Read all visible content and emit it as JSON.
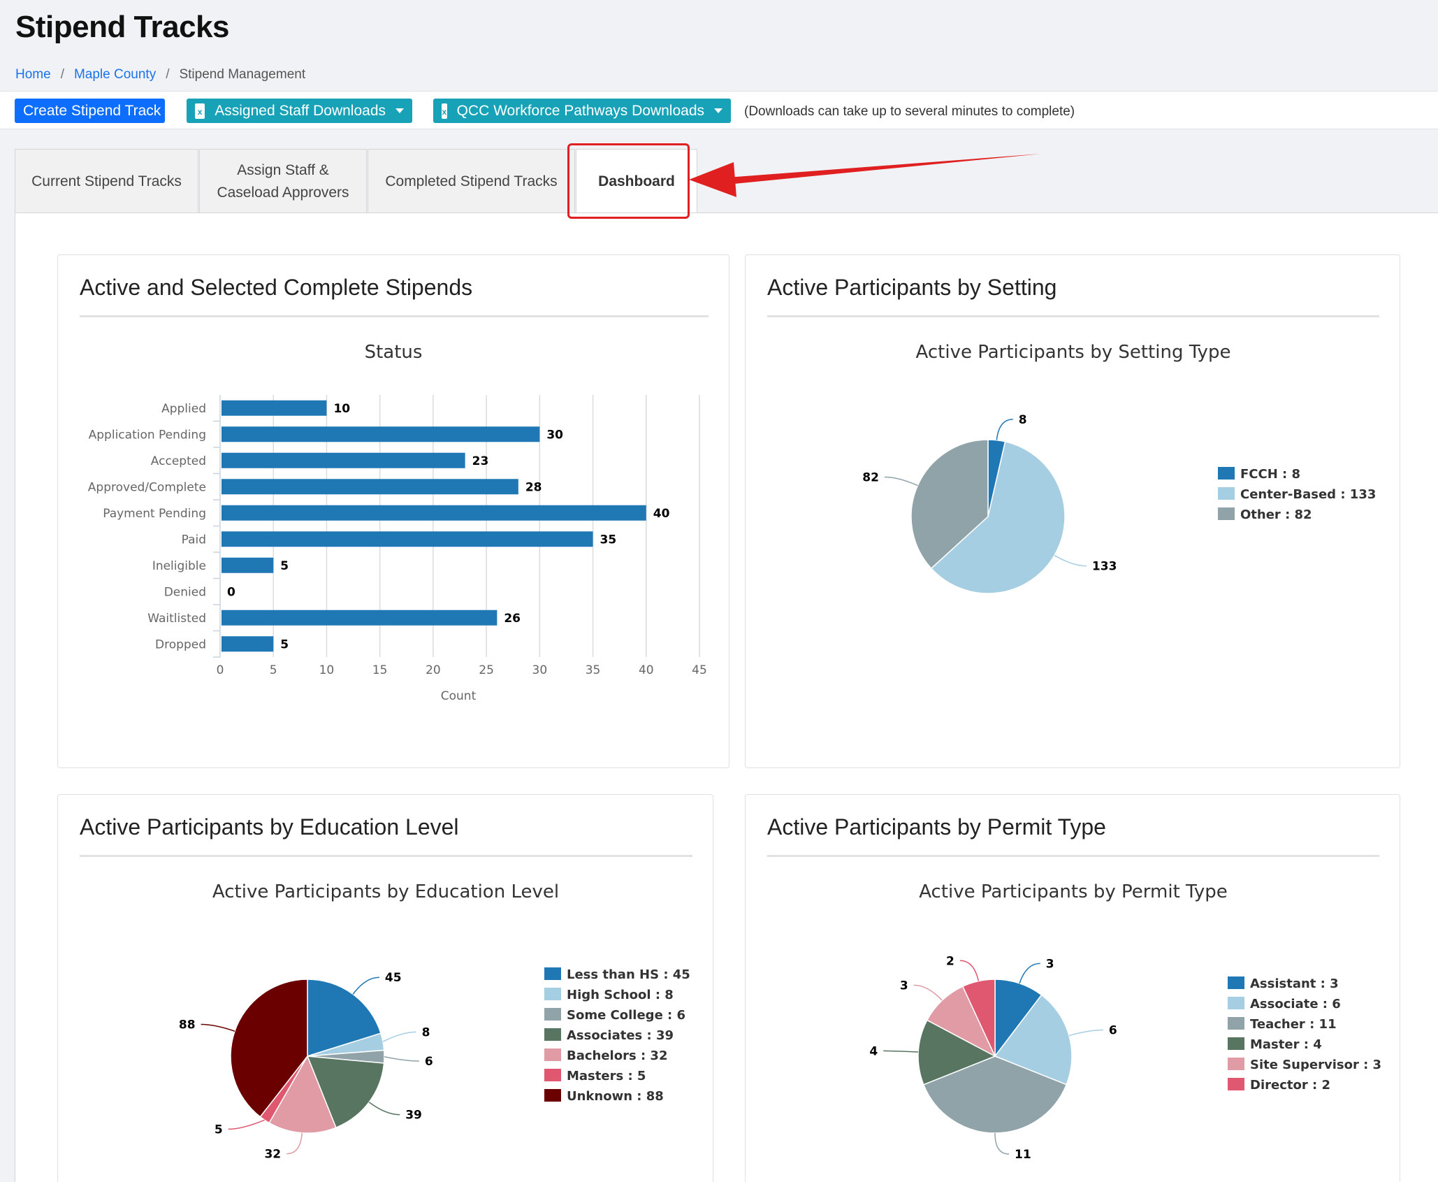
{
  "page": {
    "title": "Stipend Tracks",
    "breadcrumb": [
      "Home",
      "Maple County",
      "Stipend Management"
    ]
  },
  "toolbar": {
    "create_label": "Create Stipend Track",
    "staff_downloads_label": "Assigned Staff Downloads",
    "qcc_downloads_label": "QCC Workforce Pathways Downloads",
    "note": "(Downloads can take up to several minutes to complete)"
  },
  "tabs": [
    {
      "label": "Current Stipend Tracks"
    },
    {
      "label": "Assign Staff &\nCaseload Approvers"
    },
    {
      "label": "Completed Stipend Tracks"
    },
    {
      "label": "Dashboard",
      "active": true
    }
  ],
  "cards": {
    "status": {
      "title": "Active and Selected Complete Stipends"
    },
    "setting": {
      "title": "Active Participants by Setting"
    },
    "education": {
      "title": "Active Participants by Education Level"
    },
    "permit": {
      "title": "Active Participants by Permit Type"
    }
  },
  "colors": {
    "blue": "#1f77b4",
    "light_blue": "#a6cee3",
    "gray": "#8fa3a8",
    "dark_green": "#577561",
    "pink": "#e09ba4",
    "red": "#e05770",
    "maroon": "#6b0000",
    "arrow_red": "#e02020"
  },
  "chart_data": [
    {
      "type": "bar",
      "orientation": "horizontal",
      "title": "Status",
      "xlabel": "Count",
      "ylabel": "",
      "xlim": [
        0,
        45
      ],
      "xticks": [
        0,
        5,
        10,
        15,
        20,
        25,
        30,
        35,
        40,
        45
      ],
      "categories": [
        "Applied",
        "Application Pending",
        "Accepted",
        "Approved/Complete",
        "Payment Pending",
        "Paid",
        "Ineligible",
        "Denied",
        "Waitlisted",
        "Dropped"
      ],
      "values": [
        10,
        30,
        23,
        28,
        40,
        35,
        5,
        0,
        26,
        5
      ],
      "grid": true
    },
    {
      "type": "pie",
      "title": "Active Participants by Setting Type",
      "legend": "right",
      "labels": [
        "FCCH",
        "Center-Based",
        "Other"
      ],
      "values": [
        8,
        133,
        82
      ]
    },
    {
      "type": "pie",
      "title": "Active Participants by Education Level",
      "legend": "right",
      "labels": [
        "Less than HS",
        "High School",
        "Some College",
        "Associates",
        "Bachelors",
        "Masters",
        "Unknown"
      ],
      "values": [
        45,
        8,
        6,
        39,
        32,
        5,
        88
      ]
    },
    {
      "type": "pie",
      "title": "Active Participants by Permit Type",
      "legend": "right",
      "labels": [
        "Assistant",
        "Associate",
        "Teacher",
        "Master",
        "Site Supervisor",
        "Director"
      ],
      "values": [
        3,
        6,
        11,
        4,
        3,
        2
      ]
    }
  ]
}
